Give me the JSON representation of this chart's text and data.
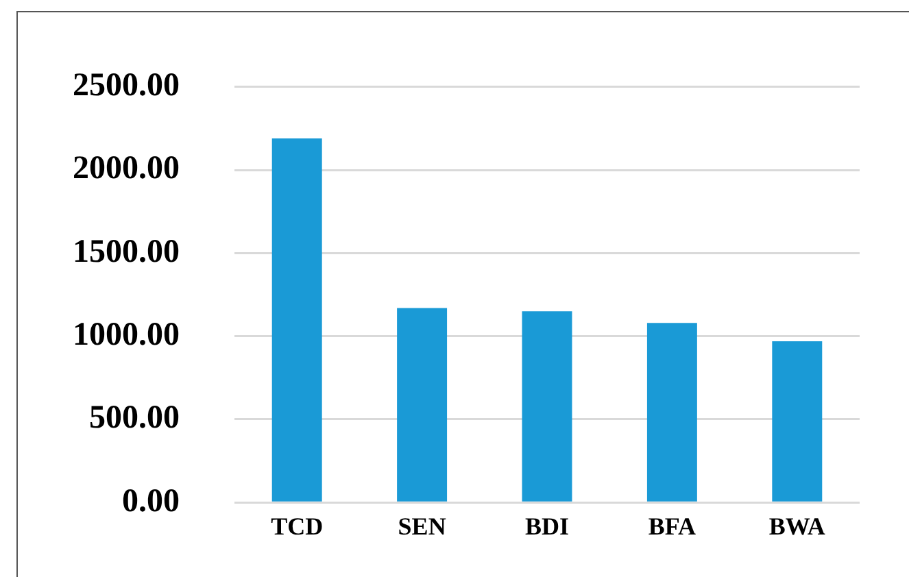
{
  "chart_data": {
    "type": "bar",
    "categories": [
      "TCD",
      "SEN",
      "BDI",
      "BFA",
      "BWA"
    ],
    "values": [
      2190,
      1170,
      1150,
      1080,
      970
    ],
    "color": "#1a9ad6",
    "ylim": [
      0,
      2500
    ],
    "yticks": [
      {
        "value": 0,
        "label": "0.00"
      },
      {
        "value": 500,
        "label": "500.00"
      },
      {
        "value": 1000,
        "label": "1000.00"
      },
      {
        "value": 1500,
        "label": "1500.00"
      },
      {
        "value": 2000,
        "label": "2000.00"
      },
      {
        "value": 2500,
        "label": "2500.00"
      }
    ],
    "grid": "y",
    "legend": false
  }
}
